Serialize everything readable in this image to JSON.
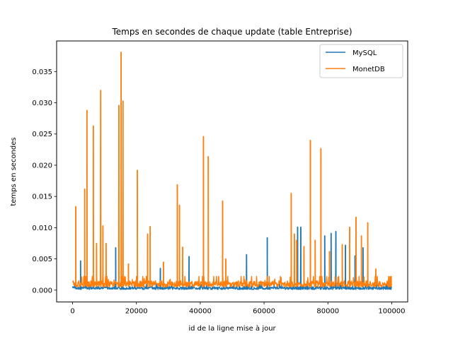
{
  "chart_data": {
    "type": "line",
    "title": "Temps en secondes de chaque update (table Entreprise)",
    "xlabel": "id de la ligne mise à jour",
    "ylabel": "temps en secondes",
    "xlim": [
      -5000,
      105000
    ],
    "ylim": [
      -0.0019,
      0.0399
    ],
    "xticks": [
      0,
      20000,
      40000,
      60000,
      80000,
      100000
    ],
    "xtick_labels": [
      "0",
      "20000",
      "40000",
      "60000",
      "80000",
      "100000"
    ],
    "yticks": [
      0.0,
      0.005,
      0.01,
      0.015,
      0.02,
      0.025,
      0.03,
      0.035
    ],
    "ytick_labels": [
      "0.000",
      "0.005",
      "0.010",
      "0.015",
      "0.020",
      "0.025",
      "0.030",
      "0.035"
    ],
    "grid": false,
    "legend_position": "top-right",
    "series": [
      {
        "name": "MySQL",
        "color": "#1f77b4",
        "baseline": {
          "x_start": 0,
          "x_end": 100000,
          "low": 0.0001,
          "high": 0.0009
        },
        "spikes": [
          {
            "x": 2500,
            "y": 0.0047
          },
          {
            "x": 13500,
            "y": 0.0068
          },
          {
            "x": 27500,
            "y": 0.0035
          },
          {
            "x": 36500,
            "y": 0.0054
          },
          {
            "x": 54500,
            "y": 0.0057
          },
          {
            "x": 61000,
            "y": 0.0084
          },
          {
            "x": 70500,
            "y": 0.0101
          },
          {
            "x": 71500,
            "y": 0.0101
          },
          {
            "x": 79000,
            "y": 0.0087
          },
          {
            "x": 81000,
            "y": 0.0091
          },
          {
            "x": 82500,
            "y": 0.0094
          },
          {
            "x": 85500,
            "y": 0.0072
          },
          {
            "x": 88500,
            "y": 0.0055
          },
          {
            "x": 91000,
            "y": 0.0068
          },
          {
            "x": 99500,
            "y": 0.0011
          }
        ]
      },
      {
        "name": "MonetDB",
        "color": "#ff7f0e",
        "baseline": {
          "x_start": 0,
          "x_end": 100000,
          "low": 0.0005,
          "high": 0.0022
        },
        "spikes": [
          {
            "x": 1000,
            "y": 0.0134
          },
          {
            "x": 3800,
            "y": 0.0162
          },
          {
            "x": 4500,
            "y": 0.0288
          },
          {
            "x": 6500,
            "y": 0.0263
          },
          {
            "x": 7500,
            "y": 0.0075
          },
          {
            "x": 8800,
            "y": 0.032
          },
          {
            "x": 9500,
            "y": 0.0103
          },
          {
            "x": 10500,
            "y": 0.0075
          },
          {
            "x": 14500,
            "y": 0.0296
          },
          {
            "x": 15200,
            "y": 0.0381
          },
          {
            "x": 15800,
            "y": 0.0303
          },
          {
            "x": 17500,
            "y": 0.0042
          },
          {
            "x": 20300,
            "y": 0.0192
          },
          {
            "x": 23500,
            "y": 0.009
          },
          {
            "x": 24300,
            "y": 0.0102
          },
          {
            "x": 28500,
            "y": 0.0045
          },
          {
            "x": 32800,
            "y": 0.0169
          },
          {
            "x": 33500,
            "y": 0.0136
          },
          {
            "x": 34500,
            "y": 0.0069
          },
          {
            "x": 41000,
            "y": 0.0246
          },
          {
            "x": 42500,
            "y": 0.0214
          },
          {
            "x": 47000,
            "y": 0.0143
          },
          {
            "x": 48000,
            "y": 0.005
          },
          {
            "x": 68500,
            "y": 0.0155
          },
          {
            "x": 69500,
            "y": 0.009
          },
          {
            "x": 70200,
            "y": 0.008
          },
          {
            "x": 72500,
            "y": 0.007
          },
          {
            "x": 74500,
            "y": 0.024
          },
          {
            "x": 76000,
            "y": 0.008
          },
          {
            "x": 77800,
            "y": 0.0227
          },
          {
            "x": 80500,
            "y": 0.0062
          },
          {
            "x": 84500,
            "y": 0.0073
          },
          {
            "x": 86800,
            "y": 0.0101
          },
          {
            "x": 88800,
            "y": 0.0117
          },
          {
            "x": 90500,
            "y": 0.0087
          },
          {
            "x": 92500,
            "y": 0.0108
          },
          {
            "x": 95000,
            "y": 0.0034
          },
          {
            "x": 99800,
            "y": 0.0022
          }
        ]
      }
    ]
  }
}
